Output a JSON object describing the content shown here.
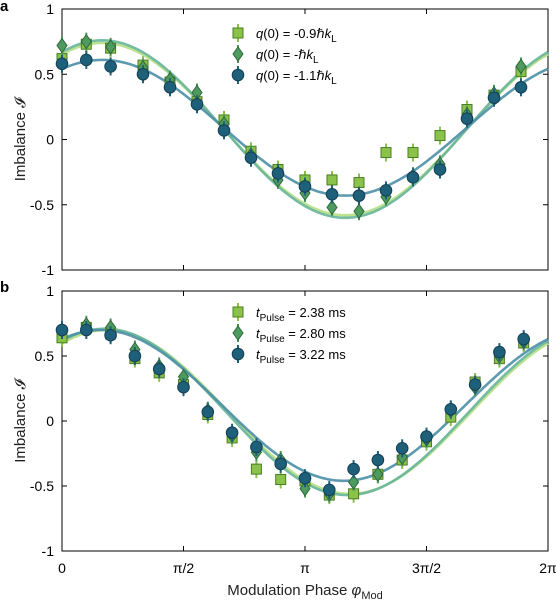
{
  "panels": [
    {
      "label": "a",
      "chart_data": {
        "type": "scatter",
        "xlabel": "Modulation Phase φMod",
        "ylabel": "Imbalance 𝓘",
        "xlim": [
          0,
          6.2832
        ],
        "ylim": [
          -1,
          1
        ],
        "xticks": [
          0,
          1.5708,
          3.1416,
          4.7124,
          6.2832
        ],
        "xtick_labels": [
          "0",
          "π/2",
          "π",
          "3π/2",
          "2π"
        ],
        "yticks": [
          -1,
          -0.5,
          0,
          0.5,
          1
        ],
        "ytick_labels": [
          "-1",
          "-0.5",
          "0",
          "0.5",
          "1"
        ],
        "legend_position": "top-center",
        "series": [
          {
            "legend": [
              "q(0) = -0.9ℏk",
              "L"
            ],
            "color": "#8bc34a",
            "curve_color": "#b5df84",
            "marker": "square",
            "x": [
              0.0,
              0.3142,
              0.6283,
              1.0472,
              1.3963,
              1.7453,
              2.0944,
              2.4435,
              2.7925,
              3.1416,
              3.4907,
              3.8397,
              4.1888,
              4.5379,
              4.8869,
              5.236,
              5.5851,
              5.9341
            ],
            "y": [
              0.62,
              0.73,
              0.7,
              0.57,
              0.44,
              0.29,
              0.15,
              -0.09,
              -0.23,
              -0.31,
              -0.31,
              -0.33,
              -0.1,
              -0.1,
              0.03,
              0.23,
              0.34,
              0.52
            ],
            "fit": {
              "amp": 0.66,
              "phase": 0.52,
              "offset": 0.08
            }
          },
          {
            "legend": [
              "q(0) = -ℏk",
              "L"
            ],
            "color": "#4f9a5f",
            "curve_color": "#66b59a",
            "marker": "diamond",
            "x": [
              0.0,
              0.3142,
              0.6283,
              1.0472,
              1.3963,
              1.7453,
              2.0944,
              2.4435,
              2.7925,
              3.1416,
              3.4907,
              3.8397,
              4.1888,
              4.5379,
              4.8869,
              5.236,
              5.5851,
              5.9341
            ],
            "y": [
              0.72,
              0.75,
              0.71,
              0.55,
              0.46,
              0.36,
              0.12,
              -0.12,
              -0.31,
              -0.41,
              -0.52,
              -0.55,
              -0.44,
              -0.28,
              -0.19,
              0.19,
              0.35,
              0.56
            ],
            "fit": {
              "amp": 0.68,
              "phase": 0.52,
              "offset": 0.08
            }
          },
          {
            "legend": [
              "q(0) = -1.1ℏk",
              "L"
            ],
            "color": "#1e5f7a",
            "curve_color": "#4d8fa6",
            "marker": "circle",
            "x": [
              0.0,
              0.3142,
              0.6283,
              1.0472,
              1.3963,
              1.7453,
              2.0944,
              2.4435,
              2.7925,
              3.1416,
              3.4907,
              3.8397,
              4.1888,
              4.5379,
              4.8869,
              5.236,
              5.5851,
              5.9341
            ],
            "y": [
              0.58,
              0.61,
              0.56,
              0.5,
              0.4,
              0.27,
              0.07,
              -0.14,
              -0.26,
              -0.36,
              -0.42,
              -0.43,
              -0.39,
              -0.29,
              -0.23,
              0.16,
              0.32,
              0.4
            ],
            "fit": {
              "amp": 0.52,
              "phase": 0.52,
              "offset": 0.09
            }
          }
        ]
      }
    },
    {
      "label": "b",
      "chart_data": {
        "type": "scatter",
        "xlabel": "Modulation Phase φMod",
        "ylabel": "Imbalance 𝓘",
        "xlim": [
          0,
          6.2832
        ],
        "ylim": [
          -1,
          1
        ],
        "xticks": [
          0,
          1.5708,
          3.1416,
          4.7124,
          6.2832
        ],
        "xtick_labels": [
          "0",
          "π/2",
          "π",
          "3π/2",
          "2π"
        ],
        "yticks": [
          -1,
          -0.5,
          0,
          0.5,
          1
        ],
        "ytick_labels": [
          "-1",
          "-0.5",
          "0",
          "0.5",
          "1"
        ],
        "legend_position": "top-center",
        "series": [
          {
            "legend": [
              "t",
              "Pulse",
              " = 2.38 ms"
            ],
            "color": "#8bc34a",
            "curve_color": "#b5df84",
            "marker": "square",
            "x": [
              0.0,
              0.3142,
              0.6283,
              0.9425,
              1.2566,
              1.5708,
              1.885,
              2.1991,
              2.5133,
              2.8274,
              3.1416,
              3.4558,
              3.7699,
              4.0841,
              4.3982,
              4.7124,
              5.0265,
              5.3407,
              5.6549,
              5.969
            ],
            "y": [
              0.64,
              0.72,
              0.67,
              0.48,
              0.37,
              0.28,
              0.05,
              -0.13,
              -0.37,
              -0.45,
              -0.46,
              -0.57,
              -0.56,
              -0.41,
              -0.3,
              -0.16,
              0.03,
              0.3,
              0.48,
              0.6
            ],
            "fit": {
              "amp": 0.63,
              "phase": 0.58,
              "offset": 0.07
            }
          },
          {
            "legend": [
              "t",
              "Pulse",
              " = 2.80 ms"
            ],
            "color": "#4f9a5f",
            "curve_color": "#66b59a",
            "marker": "diamond",
            "x": [
              0.0,
              0.3142,
              0.6283,
              0.9425,
              1.2566,
              1.5708,
              1.885,
              2.1991,
              2.5133,
              2.8274,
              3.1416,
              3.4558,
              3.7699,
              4.0841,
              4.3982,
              4.7124,
              5.0265,
              5.3407,
              5.6549,
              5.969
            ],
            "y": [
              0.7,
              0.74,
              0.72,
              0.55,
              0.42,
              0.34,
              0.08,
              -0.11,
              -0.24,
              -0.3,
              -0.52,
              -0.56,
              -0.47,
              -0.41,
              -0.28,
              -0.14,
              0.08,
              0.26,
              0.5,
              0.61
            ],
            "fit": {
              "amp": 0.64,
              "phase": 0.55,
              "offset": 0.07
            }
          },
          {
            "legend": [
              "t",
              "Pulse",
              " = 3.22 ms"
            ],
            "color": "#1e5f7a",
            "curve_color": "#4d8fa6",
            "marker": "circle",
            "x": [
              0.0,
              0.3142,
              0.6283,
              0.9425,
              1.2566,
              1.5708,
              1.885,
              2.1991,
              2.5133,
              2.8274,
              3.1416,
              3.4558,
              3.7699,
              4.0841,
              4.3982,
              4.7124,
              5.0265,
              5.3407,
              5.6549,
              5.969
            ],
            "y": [
              0.7,
              0.7,
              0.66,
              0.5,
              0.4,
              0.26,
              0.07,
              -0.09,
              -0.2,
              -0.33,
              -0.44,
              -0.53,
              -0.37,
              -0.3,
              -0.21,
              -0.12,
              0.09,
              0.28,
              0.53,
              0.63
            ],
            "fit": {
              "amp": 0.58,
              "phase": 0.5,
              "offset": 0.12
            }
          }
        ]
      }
    }
  ]
}
